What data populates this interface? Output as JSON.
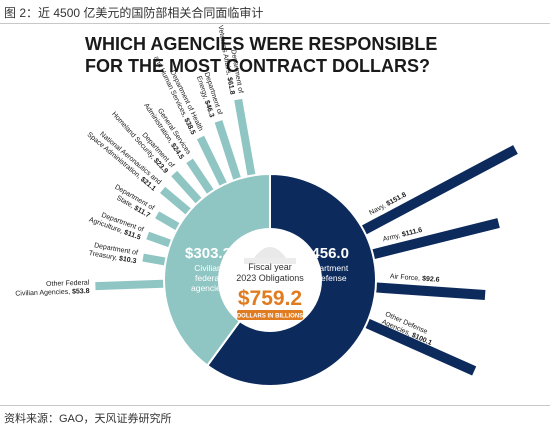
{
  "figure": {
    "caption": "图 2：近 4500 亿美元的国防部相关合同面临审计",
    "source": "资料来源：GAO，天风证券研究所"
  },
  "chart_data": {
    "type": "pie",
    "title_lines": [
      "WHICH AGENCIES WERE RESPONSIBLE",
      "FOR THE MOST CONTRACT DOLLARS?"
    ],
    "center": {
      "lines": [
        "Fiscal year",
        "2023 Obligations"
      ],
      "total": "$759.2",
      "unit": "DOLLARS IN BILLIONS"
    },
    "slices": [
      {
        "name": "Civilian federal agencies",
        "value_label": "$303.2",
        "value": 303.2,
        "color": "#8fc5c2",
        "label_lines": [
          "Civilian",
          "federal",
          "agencies"
        ]
      },
      {
        "name": "Department of Defense",
        "value_label": "$456.0",
        "value": 456.0,
        "color": "#0d2a5c",
        "label_lines": [
          "Department",
          "of Defense"
        ]
      }
    ],
    "defense_breakdown": [
      {
        "label": "Navy",
        "value_label": "$151.8",
        "value": 151.8
      },
      {
        "label": "Army",
        "value_label": "$111.6",
        "value": 111.6
      },
      {
        "label": "Air Force",
        "value_label": "$92.6",
        "value": 92.6
      },
      {
        "label": "Other Defense Agencies",
        "value_label": "$100.1",
        "value": 100.1
      }
    ],
    "civilian_breakdown": [
      {
        "label": "Department of Veterans Affairs",
        "value_label": "$61.8",
        "value": 61.8
      },
      {
        "label": "Department of Energy",
        "value_label": "$46.3",
        "value": 46.3
      },
      {
        "label": "Department of Health and Human Services",
        "value_label": "$38.5",
        "value": 38.5
      },
      {
        "label": "General Services Administration",
        "value_label": "$24.5",
        "value": 24.5
      },
      {
        "label": "Department of Homeland Security",
        "value_label": "$23.9",
        "value": 23.9
      },
      {
        "label": "National Aeronautics and Space Administration",
        "value_label": "$21.1",
        "value": 21.1
      },
      {
        "label": "Department of State",
        "value_label": "$11.7",
        "value": 11.7
      },
      {
        "label": "Department of Agriculture",
        "value_label": "$11.5",
        "value": 11.5
      },
      {
        "label": "Department of Treasury",
        "value_label": "$10.3",
        "value": 10.3
      },
      {
        "label": "Other Federal Civilian Agencies",
        "value_label": "$53.8",
        "value": 53.8
      }
    ],
    "colors": {
      "civilian": "#8fc5c2",
      "defense": "#0d2a5c",
      "total": "#e07b20",
      "text": "#1a1a1a"
    }
  }
}
